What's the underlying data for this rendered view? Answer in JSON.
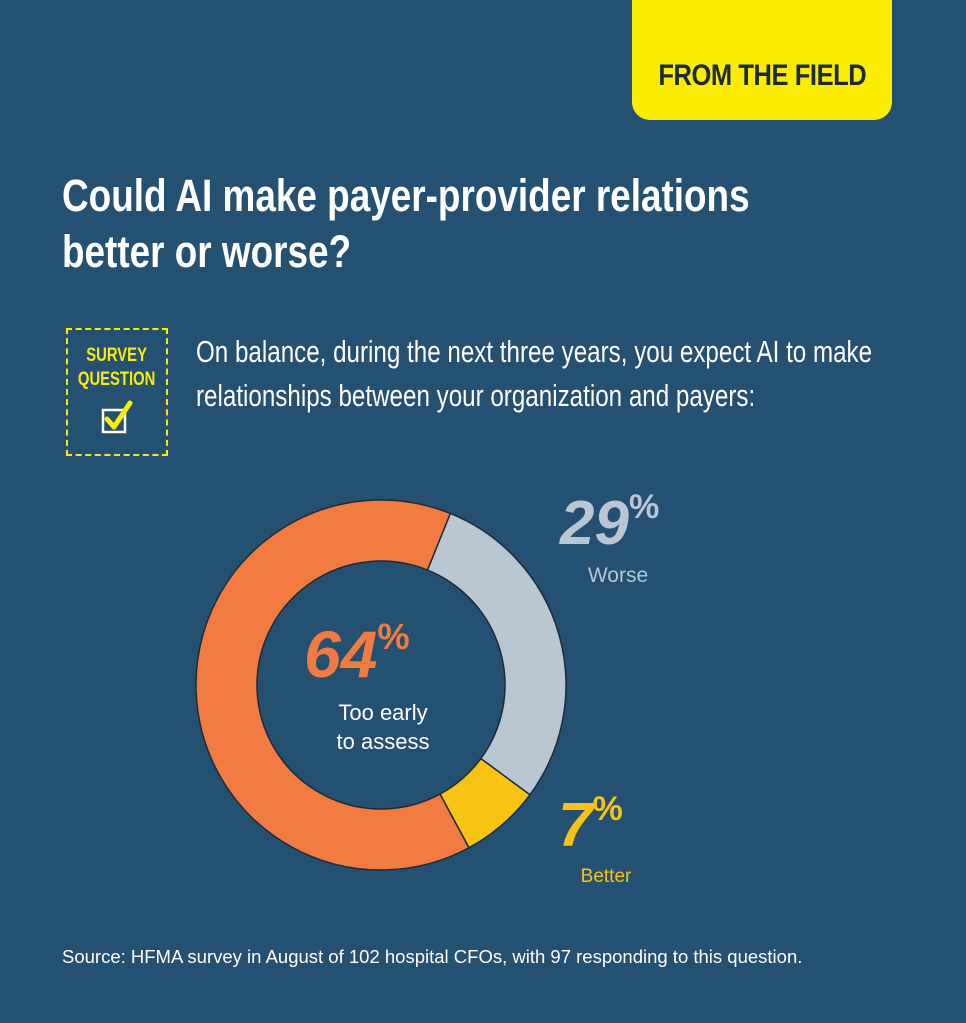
{
  "header": {
    "tag": "FROM THE FIELD"
  },
  "title_line1": "Could AI make payer-provider relations",
  "title_line2": "better or worse?",
  "survey_badge": {
    "line1": "SURVEY",
    "line2": "QUESTION",
    "icon": "checkbox-check-icon"
  },
  "question_line1": "On balance, during the next three years, you expect AI to make",
  "question_line2": "relationships between your organization and payers:",
  "chart_data": {
    "type": "pie",
    "variant": "donut",
    "slices": [
      {
        "label": "Worse",
        "value": 29,
        "display": "29",
        "color": "#b8c7d2"
      },
      {
        "label": "Better",
        "value": 7,
        "display": "7",
        "color": "#f7c416"
      },
      {
        "label_line1": "Too early",
        "label_line2": "to assess",
        "value": 64,
        "display": "64",
        "color": "#f27b41"
      }
    ],
    "percent_symbol": "%"
  },
  "source": "Source: HFMA survey in August of 102 hospital CFOs, with 97 responding to this question.",
  "colors": {
    "background": "#245071",
    "accent": "#fced00"
  }
}
